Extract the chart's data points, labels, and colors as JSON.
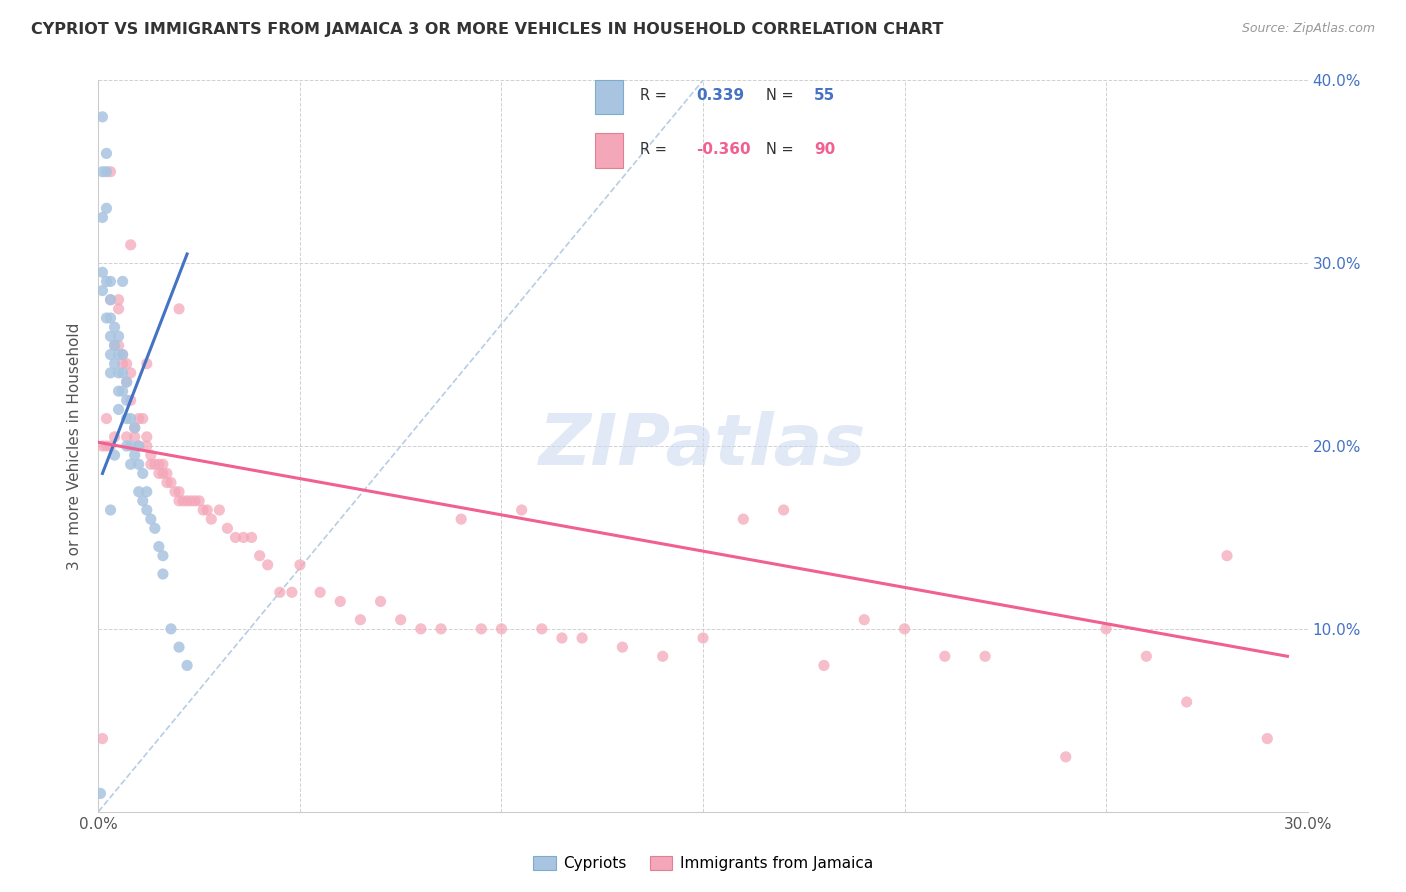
{
  "title": "CYPRIOT VS IMMIGRANTS FROM JAMAICA 3 OR MORE VEHICLES IN HOUSEHOLD CORRELATION CHART",
  "source": "Source: ZipAtlas.com",
  "ylabel": "3 or more Vehicles in Household",
  "xmin": 0.0,
  "xmax": 0.3,
  "ymin": 0.0,
  "ymax": 0.4,
  "xticks": [
    0.0,
    0.05,
    0.1,
    0.15,
    0.2,
    0.25,
    0.3
  ],
  "xtick_labels": [
    "0.0%",
    "",
    "",
    "",
    "",
    "",
    "30.0%"
  ],
  "yticks": [
    0.0,
    0.1,
    0.2,
    0.3,
    0.4
  ],
  "ytick_labels_right": [
    "",
    "10.0%",
    "20.0%",
    "30.0%",
    "40.0%"
  ],
  "cypriot_R": 0.339,
  "cypriot_N": 55,
  "jamaica_R": -0.36,
  "jamaica_N": 90,
  "cypriot_color": "#a8c4e0",
  "jamaica_color": "#f4a7b9",
  "cypriot_line_color": "#4472c4",
  "jamaica_line_color": "#f06090",
  "diagonal_color": "#b0c8e0",
  "background_color": "#ffffff",
  "watermark": "ZIPatlas",
  "cypriot_x": [
    0.0005,
    0.001,
    0.001,
    0.001,
    0.001,
    0.002,
    0.002,
    0.002,
    0.002,
    0.003,
    0.003,
    0.003,
    0.003,
    0.003,
    0.003,
    0.004,
    0.004,
    0.004,
    0.005,
    0.005,
    0.005,
    0.005,
    0.005,
    0.006,
    0.006,
    0.006,
    0.007,
    0.007,
    0.007,
    0.007,
    0.008,
    0.008,
    0.008,
    0.009,
    0.009,
    0.01,
    0.01,
    0.01,
    0.011,
    0.011,
    0.012,
    0.012,
    0.013,
    0.014,
    0.015,
    0.016,
    0.016,
    0.018,
    0.02,
    0.022,
    0.001,
    0.002,
    0.003,
    0.004,
    0.006
  ],
  "cypriot_y": [
    0.01,
    0.35,
    0.325,
    0.295,
    0.285,
    0.35,
    0.33,
    0.29,
    0.27,
    0.29,
    0.28,
    0.27,
    0.26,
    0.25,
    0.24,
    0.265,
    0.255,
    0.245,
    0.26,
    0.25,
    0.24,
    0.23,
    0.22,
    0.25,
    0.24,
    0.23,
    0.235,
    0.225,
    0.215,
    0.2,
    0.215,
    0.2,
    0.19,
    0.21,
    0.195,
    0.2,
    0.19,
    0.175,
    0.185,
    0.17,
    0.175,
    0.165,
    0.16,
    0.155,
    0.145,
    0.14,
    0.13,
    0.1,
    0.09,
    0.08,
    0.38,
    0.36,
    0.165,
    0.195,
    0.29
  ],
  "jamaica_x": [
    0.001,
    0.001,
    0.002,
    0.002,
    0.003,
    0.003,
    0.004,
    0.004,
    0.005,
    0.005,
    0.006,
    0.006,
    0.007,
    0.007,
    0.007,
    0.008,
    0.008,
    0.009,
    0.009,
    0.01,
    0.01,
    0.011,
    0.012,
    0.012,
    0.013,
    0.013,
    0.014,
    0.015,
    0.015,
    0.016,
    0.016,
    0.017,
    0.017,
    0.018,
    0.019,
    0.02,
    0.02,
    0.021,
    0.022,
    0.023,
    0.024,
    0.025,
    0.026,
    0.027,
    0.028,
    0.03,
    0.032,
    0.034,
    0.036,
    0.038,
    0.04,
    0.042,
    0.045,
    0.048,
    0.05,
    0.055,
    0.06,
    0.065,
    0.07,
    0.075,
    0.08,
    0.085,
    0.09,
    0.095,
    0.1,
    0.105,
    0.11,
    0.115,
    0.12,
    0.13,
    0.14,
    0.15,
    0.16,
    0.17,
    0.18,
    0.19,
    0.2,
    0.21,
    0.22,
    0.24,
    0.25,
    0.26,
    0.27,
    0.28,
    0.29,
    0.003,
    0.005,
    0.008,
    0.012,
    0.02
  ],
  "jamaica_y": [
    0.04,
    0.2,
    0.2,
    0.215,
    0.2,
    0.28,
    0.255,
    0.205,
    0.28,
    0.255,
    0.25,
    0.245,
    0.245,
    0.235,
    0.205,
    0.24,
    0.225,
    0.21,
    0.205,
    0.215,
    0.2,
    0.215,
    0.205,
    0.2,
    0.195,
    0.19,
    0.19,
    0.19,
    0.185,
    0.19,
    0.185,
    0.185,
    0.18,
    0.18,
    0.175,
    0.175,
    0.17,
    0.17,
    0.17,
    0.17,
    0.17,
    0.17,
    0.165,
    0.165,
    0.16,
    0.165,
    0.155,
    0.15,
    0.15,
    0.15,
    0.14,
    0.135,
    0.12,
    0.12,
    0.135,
    0.12,
    0.115,
    0.105,
    0.115,
    0.105,
    0.1,
    0.1,
    0.16,
    0.1,
    0.1,
    0.165,
    0.1,
    0.095,
    0.095,
    0.09,
    0.085,
    0.095,
    0.16,
    0.165,
    0.08,
    0.105,
    0.1,
    0.085,
    0.085,
    0.03,
    0.1,
    0.085,
    0.06,
    0.14,
    0.04,
    0.35,
    0.275,
    0.31,
    0.245,
    0.275
  ],
  "cypriot_line_x": [
    0.001,
    0.022
  ],
  "cypriot_line_y": [
    0.185,
    0.305
  ],
  "jamaica_line_x": [
    0.0,
    0.295
  ],
  "jamaica_line_y": [
    0.202,
    0.085
  ]
}
